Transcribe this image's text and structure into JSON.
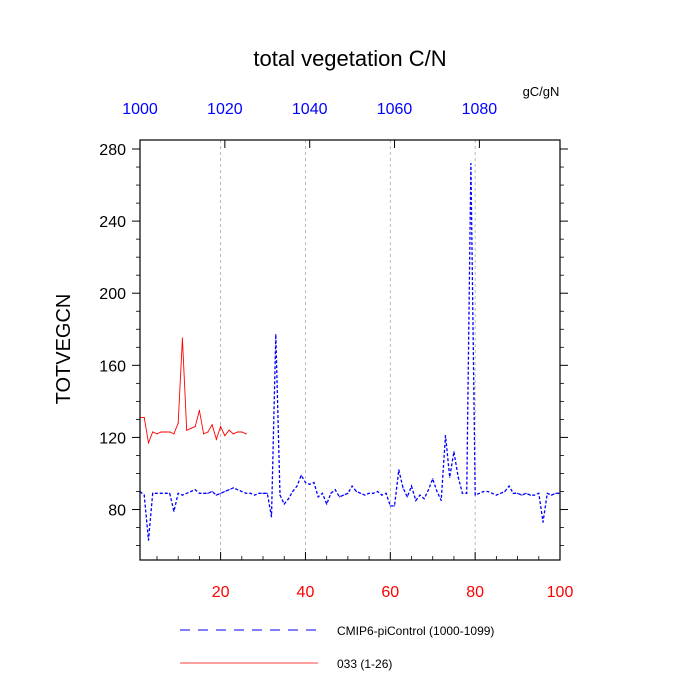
{
  "chart_data": {
    "type": "line",
    "title": "total vegetation C/N",
    "ylabel": "TOTVEGCN",
    "units": "gC/gN",
    "xlim": [
      1,
      100
    ],
    "ylim": [
      52,
      285
    ],
    "x_bottom_ticks": [
      20,
      40,
      60,
      80,
      100
    ],
    "x_top_ticks": [
      1000,
      1020,
      1040,
      1060,
      1080
    ],
    "y_ticks": [
      80,
      120,
      160,
      200,
      240,
      280
    ],
    "grid": "vertical-dashed",
    "colors": {
      "bottom_axis": "#ff0000",
      "top_axis": "#0000ff"
    },
    "series": [
      {
        "name": "CMIP6-piControl (1000-1099)",
        "color": "#0000ff",
        "dash": "dashed",
        "x": [
          1,
          2,
          3,
          4,
          5,
          6,
          7,
          8,
          9,
          10,
          11,
          12,
          13,
          14,
          15,
          16,
          17,
          18,
          19,
          20,
          21,
          22,
          23,
          24,
          25,
          26,
          27,
          28,
          29,
          30,
          31,
          32,
          33,
          34,
          35,
          36,
          37,
          38,
          39,
          40,
          41,
          42,
          43,
          44,
          45,
          46,
          47,
          48,
          49,
          50,
          51,
          52,
          53,
          54,
          55,
          56,
          57,
          58,
          59,
          60,
          61,
          62,
          63,
          64,
          65,
          66,
          67,
          68,
          69,
          70,
          71,
          72,
          73,
          74,
          75,
          76,
          77,
          78,
          79,
          80,
          81,
          82,
          83,
          84,
          85,
          86,
          87,
          88,
          89,
          90,
          91,
          92,
          93,
          94,
          95,
          96,
          97,
          98,
          99,
          100
        ],
        "y": [
          90,
          88,
          63,
          89,
          89,
          89,
          89,
          89,
          79,
          89,
          88,
          89,
          90,
          91,
          89,
          89,
          89,
          90,
          88,
          89,
          90,
          91,
          92,
          91,
          90,
          89,
          89,
          88,
          89,
          89,
          89,
          76,
          177,
          88,
          83,
          86,
          90,
          93,
          99,
          95,
          94,
          95,
          87,
          89,
          83,
          89,
          91,
          87,
          88,
          89,
          93,
          90,
          89,
          88,
          89,
          89,
          90,
          88,
          89,
          82,
          82,
          102,
          92,
          87,
          93,
          85,
          88,
          86,
          91,
          97,
          90,
          85,
          121,
          98,
          112,
          98,
          89,
          89,
          272,
          88,
          89,
          90,
          90,
          89,
          88,
          89,
          90,
          93,
          89,
          89,
          88,
          89,
          88,
          88,
          89,
          73,
          89,
          88,
          89,
          89
        ]
      },
      {
        "name": "033 (1-26)",
        "color": "#ff0000",
        "dash": "solid",
        "x": [
          1,
          2,
          3,
          4,
          5,
          6,
          7,
          8,
          9,
          10,
          11,
          12,
          13,
          14,
          15,
          16,
          17,
          18,
          19,
          20,
          21,
          22,
          23,
          24,
          25,
          26
        ],
        "y": [
          131,
          131,
          117,
          123,
          122,
          123,
          123,
          123,
          122,
          128,
          175,
          124,
          125,
          126,
          135,
          122,
          123,
          127,
          119,
          126,
          121,
          124,
          122,
          123,
          123,
          122
        ]
      }
    ]
  }
}
